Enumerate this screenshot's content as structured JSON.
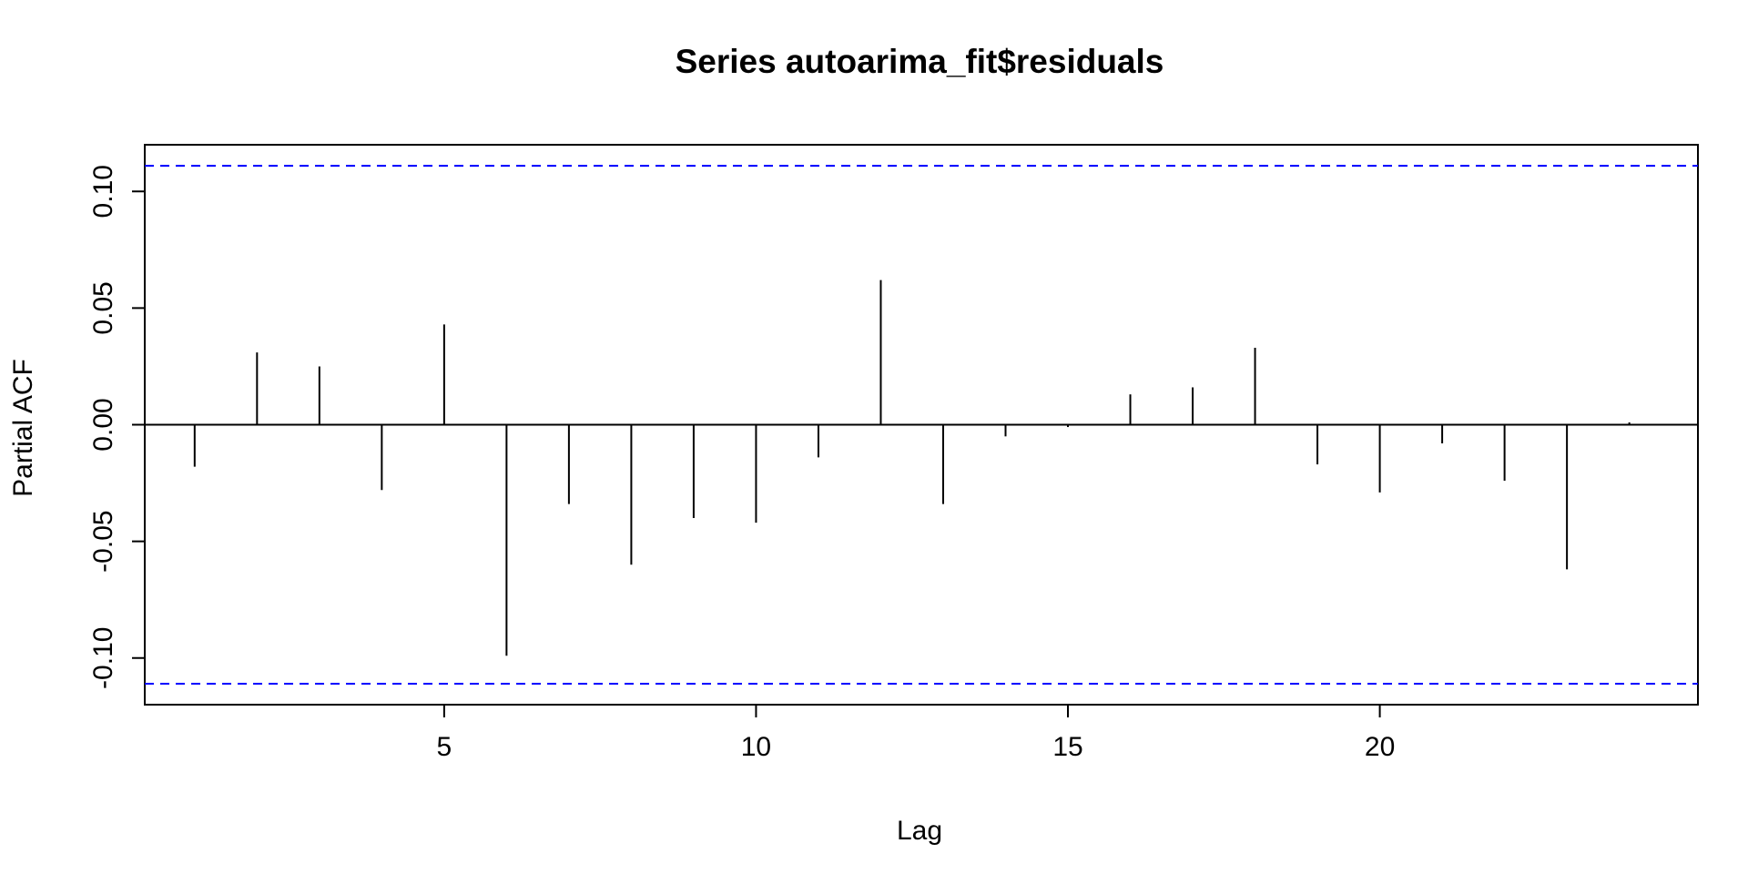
{
  "chart_data": {
    "type": "bar",
    "title": "Series  autoarima_fit$residuals",
    "xlabel": "Lag",
    "ylabel": "Partial ACF",
    "x": [
      1,
      2,
      3,
      4,
      5,
      6,
      7,
      8,
      9,
      10,
      11,
      12,
      13,
      14,
      15,
      16,
      17,
      18,
      19,
      20,
      21,
      22,
      23,
      24
    ],
    "values": [
      -0.018,
      0.031,
      0.025,
      -0.028,
      0.043,
      -0.099,
      -0.034,
      -0.06,
      -0.04,
      -0.042,
      -0.014,
      0.062,
      -0.034,
      -0.005,
      -0.001,
      0.013,
      0.016,
      0.033,
      -0.017,
      -0.029,
      -0.008,
      -0.024,
      -0.062,
      0.001
    ],
    "confidence_bound": 0.111,
    "xlim": [
      0.2,
      25.1
    ],
    "ylim": [
      -0.12,
      0.12
    ],
    "x_ticks": [
      5,
      10,
      15,
      20
    ],
    "y_ticks": [
      -0.1,
      -0.05,
      0.0,
      0.05,
      0.1
    ],
    "x_tick_labels": [
      "5",
      "10",
      "15",
      "20"
    ],
    "y_tick_labels": [
      "-0.10",
      "-0.05",
      "0.00",
      "0.05",
      "0.10"
    ],
    "grid": false,
    "colors": {
      "bars": "#000000",
      "bounds": "#0000ff",
      "zero_line": "#000000"
    }
  }
}
